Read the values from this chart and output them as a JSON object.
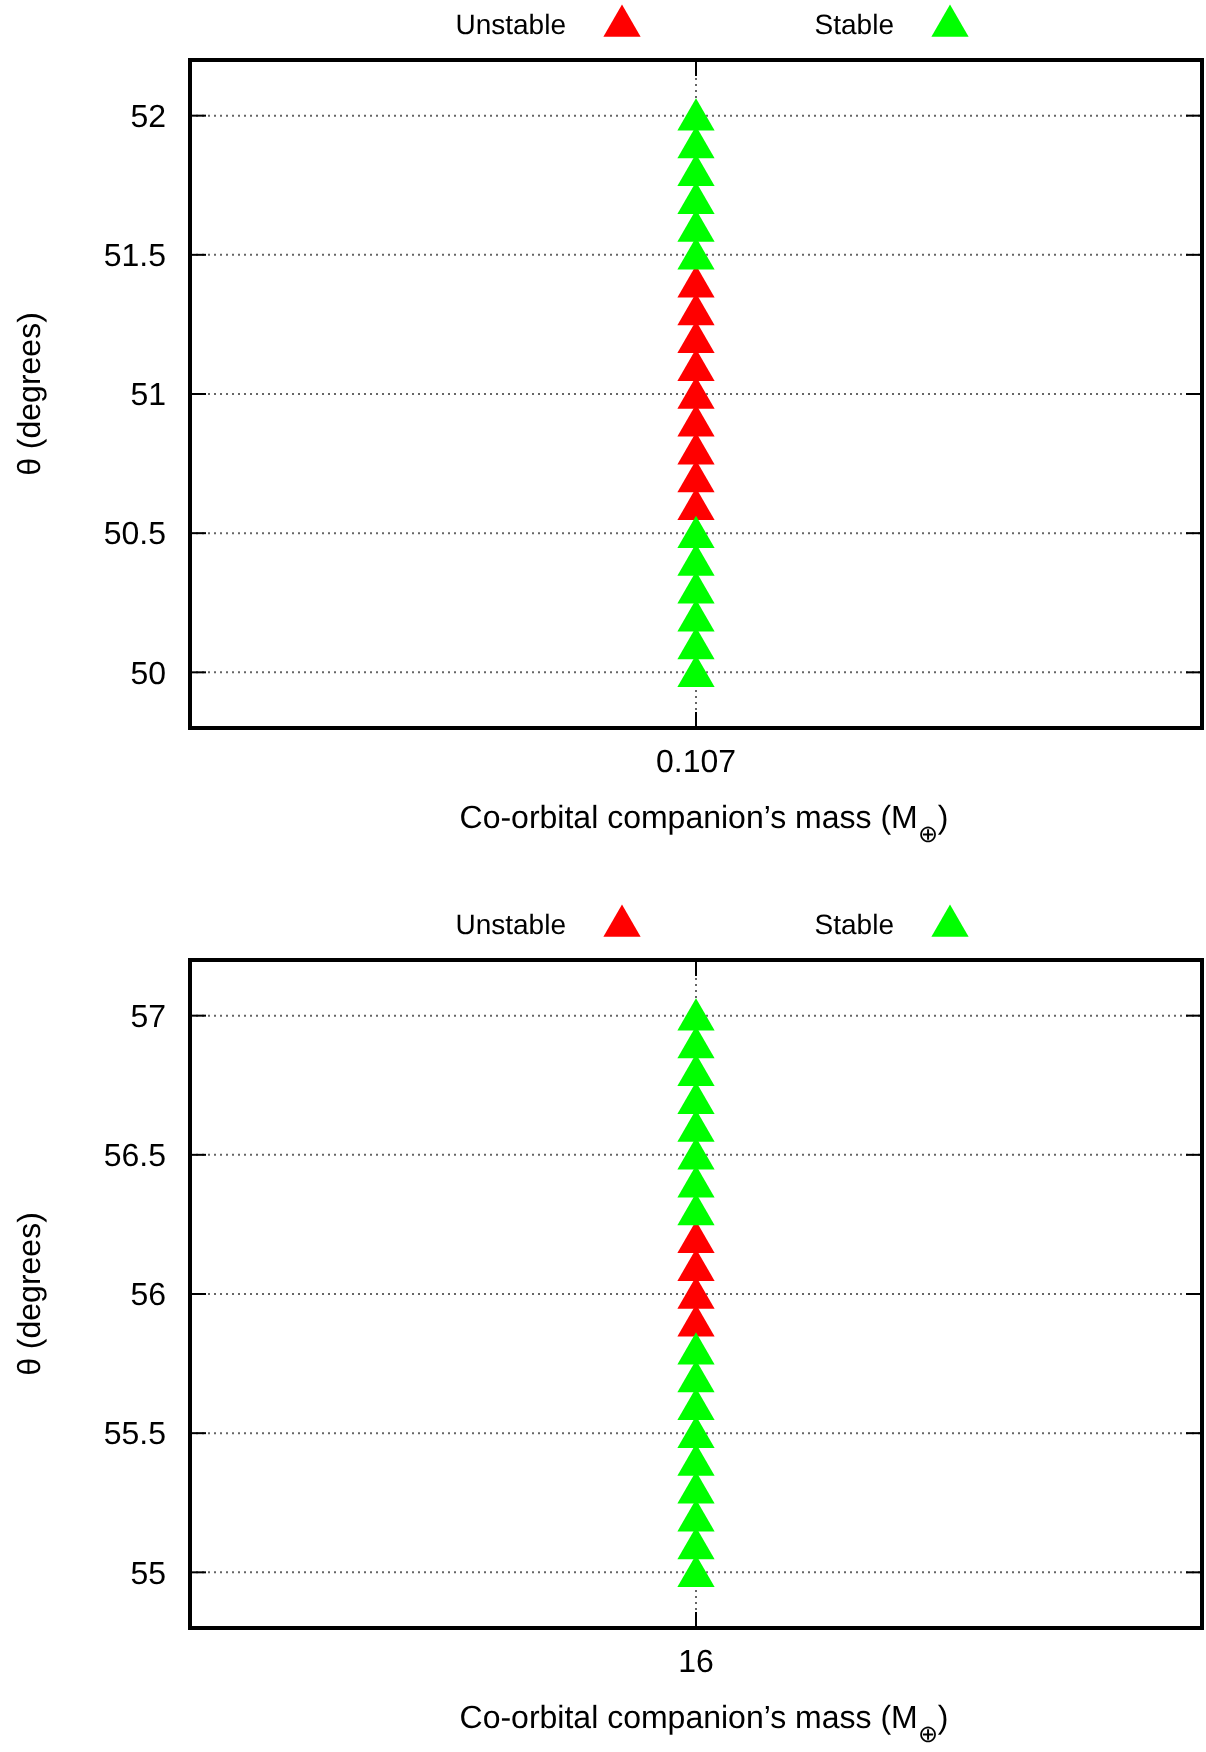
{
  "chart_data": [
    {
      "type": "scatter",
      "categories": [
        "0.107"
      ],
      "xlabel": "Co-orbital companion’s mass (M$_{⊕}$)",
      "ylabel": "θ (degrees)",
      "ylim": [
        49.8,
        52.2
      ],
      "yticks": [
        50,
        50.5,
        51,
        51.5,
        52
      ],
      "grid": true,
      "legend": "top",
      "marker": "triangle",
      "series": [
        {
          "name": "Unstable",
          "color": "#ff0000",
          "x": [
            "0.107",
            "0.107",
            "0.107",
            "0.107",
            "0.107",
            "0.107",
            "0.107",
            "0.107",
            "0.107"
          ],
          "values": [
            50.6,
            50.7,
            50.8,
            50.9,
            51.0,
            51.1,
            51.2,
            51.3,
            51.4
          ]
        },
        {
          "name": "Stable",
          "color": "#00ff00",
          "x": [
            "0.107",
            "0.107",
            "0.107",
            "0.107",
            "0.107",
            "0.107",
            "0.107",
            "0.107",
            "0.107",
            "0.107",
            "0.107",
            "0.107"
          ],
          "values": [
            50.0,
            50.1,
            50.2,
            50.3,
            50.4,
            50.5,
            51.5,
            51.6,
            51.7,
            51.8,
            51.9,
            52.0
          ]
        }
      ]
    },
    {
      "type": "scatter",
      "categories": [
        "16"
      ],
      "xlabel": "Co-orbital companion’s mass (M$_{⊕}$)",
      "ylabel": "θ (degrees)",
      "ylim": [
        54.8,
        57.2
      ],
      "yticks": [
        55,
        55.5,
        56,
        56.5,
        57
      ],
      "grid": true,
      "legend": "top",
      "marker": "triangle",
      "series": [
        {
          "name": "Unstable",
          "color": "#ff0000",
          "x": [
            "16",
            "16",
            "16",
            "16"
          ],
          "values": [
            55.9,
            56.0,
            56.1,
            56.2
          ]
        },
        {
          "name": "Stable",
          "color": "#00ff00",
          "x": [
            "16",
            "16",
            "16",
            "16",
            "16",
            "16",
            "16",
            "16",
            "16",
            "16",
            "16",
            "16",
            "16",
            "16",
            "16",
            "16",
            "16"
          ],
          "values": [
            55.0,
            55.1,
            55.2,
            55.3,
            55.4,
            55.5,
            55.6,
            55.7,
            55.8,
            56.3,
            56.4,
            56.5,
            56.6,
            56.7,
            56.8,
            56.9,
            57.0
          ]
        }
      ]
    }
  ]
}
